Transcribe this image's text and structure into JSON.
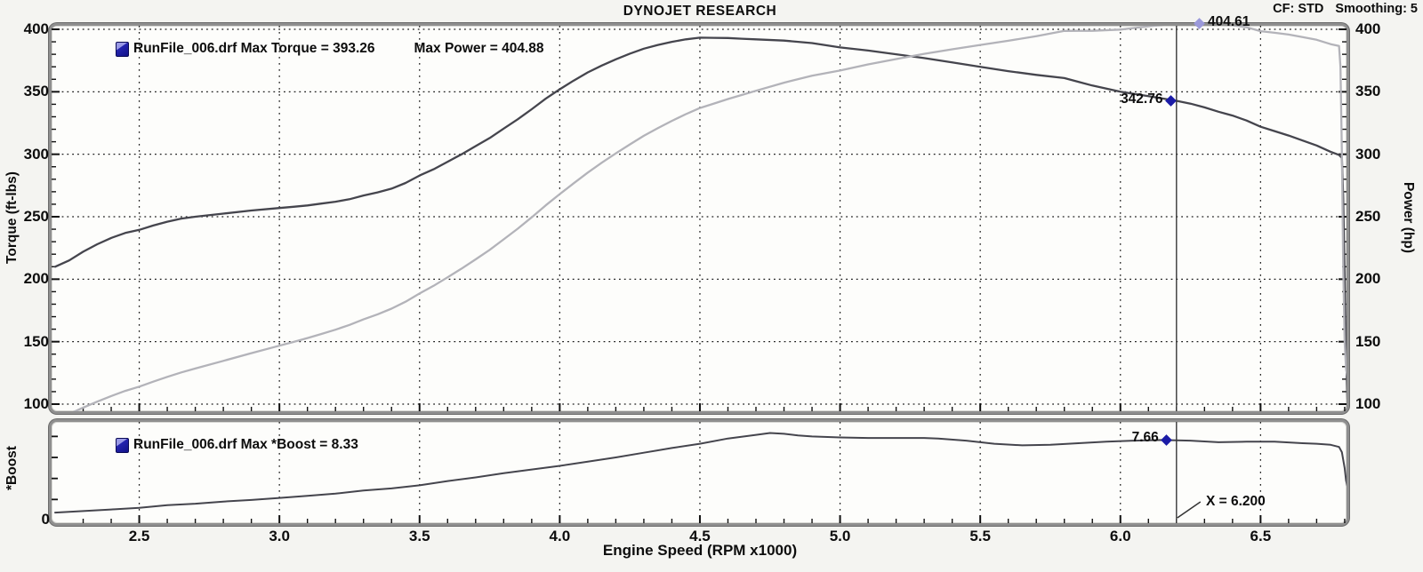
{
  "header": {
    "title": "DYNOJET RESEARCH",
    "cf": "CF: STD",
    "smoothing": "Smoothing: 5"
  },
  "chart_data": [
    {
      "type": "line",
      "title": "DYNOJET RESEARCH",
      "xlabel": "Engine Speed (RPM x1000)",
      "ylabel_left": "Torque (ft-lbs)",
      "ylabel_right": "Power (hp)",
      "x_range": [
        2.2,
        6.83
      ],
      "y_range": [
        94,
        408
      ],
      "x_minor_step": 0.1,
      "y_minor_step": 10,
      "grid": true,
      "x_ticks": [
        {
          "v": 2.5,
          "label": "2.5"
        },
        {
          "v": 3.0,
          "label": "3.0"
        },
        {
          "v": 3.5,
          "label": "3.5"
        },
        {
          "v": 4.0,
          "label": "4.0"
        },
        {
          "v": 4.5,
          "label": "4.5"
        },
        {
          "v": 5.0,
          "label": "5.0"
        },
        {
          "v": 5.5,
          "label": "5.5"
        },
        {
          "v": 6.0,
          "label": "6.0"
        },
        {
          "v": 6.5,
          "label": "6.5"
        }
      ],
      "y_ticks": [
        {
          "v": 400,
          "label": "400"
        },
        {
          "v": 350,
          "label": "350"
        },
        {
          "v": 300,
          "label": "300"
        },
        {
          "v": 250,
          "label": "250"
        },
        {
          "v": 200,
          "label": "200"
        },
        {
          "v": 150,
          "label": "150"
        },
        {
          "v": 100,
          "label": "100"
        }
      ],
      "legend": {
        "icon_color": "#2525b0",
        "text_torque": "RunFile_006.drf Max Torque = 393.26",
        "text_power": "Max Power = 404.88",
        "max_torque": 393.26,
        "max_power": 404.88,
        "runfile": "RunFile_006.drf"
      },
      "cursor": {
        "x": 6.2,
        "label": "X = 6.200"
      },
      "markers": [
        {
          "name": "torque",
          "label": "342.76",
          "rpm": 6.18,
          "value": 342.76,
          "color": "#1b1ba6",
          "label_side": "left"
        },
        {
          "name": "power",
          "label": "404.61",
          "rpm": 6.28,
          "value": 404.61,
          "color": "#9b99da",
          "label_side": "right"
        }
      ],
      "series": [
        {
          "name": "Torque (ft-lbs)",
          "color": "#45454d",
          "width": 2.3,
          "points": [
            [
              2.2,
              210
            ],
            [
              2.25,
              215
            ],
            [
              2.3,
              222
            ],
            [
              2.35,
              228
            ],
            [
              2.4,
              233
            ],
            [
              2.45,
              237
            ],
            [
              2.5,
              239.5
            ],
            [
              2.55,
              243
            ],
            [
              2.6,
              246
            ],
            [
              2.65,
              248.5
            ],
            [
              2.7,
              250
            ],
            [
              2.8,
              252.5
            ],
            [
              2.9,
              255
            ],
            [
              3.0,
              257
            ],
            [
              3.05,
              258
            ],
            [
              3.1,
              259
            ],
            [
              3.15,
              260.5
            ],
            [
              3.2,
              262
            ],
            [
              3.25,
              264
            ],
            [
              3.3,
              267
            ],
            [
              3.35,
              269.5
            ],
            [
              3.4,
              272.5
            ],
            [
              3.45,
              277
            ],
            [
              3.5,
              283
            ],
            [
              3.55,
              288
            ],
            [
              3.6,
              294
            ],
            [
              3.65,
              300
            ],
            [
              3.7,
              306.5
            ],
            [
              3.75,
              313
            ],
            [
              3.8,
              320.5
            ],
            [
              3.85,
              328
            ],
            [
              3.9,
              336
            ],
            [
              3.95,
              344.5
            ],
            [
              4.0,
              352
            ],
            [
              4.05,
              359
            ],
            [
              4.1,
              365.5
            ],
            [
              4.15,
              371
            ],
            [
              4.2,
              376
            ],
            [
              4.25,
              380.5
            ],
            [
              4.3,
              384.5
            ],
            [
              4.35,
              387.5
            ],
            [
              4.4,
              390
            ],
            [
              4.45,
              392
            ],
            [
              4.5,
              393.3
            ],
            [
              4.55,
              393.2
            ],
            [
              4.6,
              393
            ],
            [
              4.65,
              392.5
            ],
            [
              4.7,
              392
            ],
            [
              4.8,
              391
            ],
            [
              4.9,
              389
            ],
            [
              5.0,
              385.5
            ],
            [
              5.1,
              383
            ],
            [
              5.2,
              380
            ],
            [
              5.3,
              377
            ],
            [
              5.4,
              373.5
            ],
            [
              5.5,
              370
            ],
            [
              5.6,
              366.5
            ],
            [
              5.7,
              363.5
            ],
            [
              5.8,
              361
            ],
            [
              5.85,
              358
            ],
            [
              5.9,
              355
            ],
            [
              6.0,
              350
            ],
            [
              6.1,
              346.5
            ],
            [
              6.2,
              342.8
            ],
            [
              6.25,
              340.5
            ],
            [
              6.3,
              337.5
            ],
            [
              6.35,
              334
            ],
            [
              6.4,
              331
            ],
            [
              6.45,
              327
            ],
            [
              6.5,
              322
            ],
            [
              6.55,
              318.5
            ],
            [
              6.6,
              315
            ],
            [
              6.65,
              311
            ],
            [
              6.7,
              307
            ],
            [
              6.75,
              302
            ],
            [
              6.78,
              299.5
            ],
            [
              6.79,
              297
            ],
            [
              6.795,
              265
            ],
            [
              6.8,
              200
            ],
            [
              6.805,
              140
            ],
            [
              6.81,
              104
            ]
          ]
        },
        {
          "name": "Power (hp)",
          "color": "#b3b3b9",
          "width": 2.3,
          "points": [
            [
              2.2,
              88
            ],
            [
              2.25,
              92.1
            ],
            [
              2.3,
              97.2
            ],
            [
              2.35,
              102
            ],
            [
              2.4,
              106.5
            ],
            [
              2.45,
              110.6
            ],
            [
              2.5,
              114
            ],
            [
              2.55,
              118
            ],
            [
              2.6,
              121.8
            ],
            [
              2.65,
              125.4
            ],
            [
              2.7,
              128.5
            ],
            [
              2.8,
              134.6
            ],
            [
              2.9,
              140.8
            ],
            [
              3.0,
              146.8
            ],
            [
              3.05,
              149.8
            ],
            [
              3.1,
              152.9
            ],
            [
              3.15,
              156.2
            ],
            [
              3.2,
              159.6
            ],
            [
              3.25,
              163.4
            ],
            [
              3.3,
              167.8
            ],
            [
              3.35,
              171.9
            ],
            [
              3.4,
              176.4
            ],
            [
              3.45,
              182
            ],
            [
              3.5,
              188.6
            ],
            [
              3.55,
              194.7
            ],
            [
              3.6,
              201.5
            ],
            [
              3.65,
              208.5
            ],
            [
              3.7,
              215.9
            ],
            [
              3.75,
              223.5
            ],
            [
              3.8,
              231.9
            ],
            [
              3.85,
              240.4
            ],
            [
              3.9,
              249.5
            ],
            [
              3.95,
              259.1
            ],
            [
              4.0,
              268.1
            ],
            [
              4.05,
              276.8
            ],
            [
              4.1,
              285.3
            ],
            [
              4.15,
              293.2
            ],
            [
              4.2,
              300.7
            ],
            [
              4.25,
              307.9
            ],
            [
              4.3,
              314.8
            ],
            [
              4.35,
              320.9
            ],
            [
              4.4,
              326.7
            ],
            [
              4.45,
              332.1
            ],
            [
              4.5,
              337
            ],
            [
              4.55,
              340.6
            ],
            [
              4.6,
              344.2
            ],
            [
              4.65,
              347.5
            ],
            [
              4.7,
              350.8
            ],
            [
              4.8,
              357.3
            ],
            [
              4.9,
              362.9
            ],
            [
              5.0,
              367
            ],
            [
              5.1,
              371.9
            ],
            [
              5.2,
              376.2
            ],
            [
              5.3,
              380.4
            ],
            [
              5.4,
              384
            ],
            [
              5.5,
              387.5
            ],
            [
              5.6,
              390.8
            ],
            [
              5.7,
              394.5
            ],
            [
              5.8,
              398.7
            ],
            [
              5.85,
              398.8
            ],
            [
              5.9,
              398.8
            ],
            [
              6.0,
              399.8
            ],
            [
              6.1,
              402.4
            ],
            [
              6.2,
              404.6
            ],
            [
              6.25,
              404.9
            ],
            [
              6.3,
              404.8
            ],
            [
              6.35,
              403.8
            ],
            [
              6.4,
              403.3
            ],
            [
              6.45,
              401.6
            ],
            [
              6.5,
              398.5
            ],
            [
              6.55,
              397.2
            ],
            [
              6.6,
              395.8
            ],
            [
              6.65,
              393.8
            ],
            [
              6.7,
              391.6
            ],
            [
              6.75,
              388.1
            ],
            [
              6.78,
              386.6
            ],
            [
              6.785,
              370
            ],
            [
              6.79,
              300
            ],
            [
              6.795,
              210
            ],
            [
              6.8,
              150
            ],
            [
              6.805,
              128
            ],
            [
              6.81,
              122
            ]
          ]
        }
      ]
    },
    {
      "type": "line",
      "ylabel": "*Boost",
      "y_origin_label": "0",
      "x_range": [
        2.2,
        6.83
      ],
      "y_range": [
        0,
        9.4
      ],
      "y_ticks_minor": [
        2,
        4,
        6,
        8
      ],
      "legend": {
        "icon_color": "#2525b0",
        "text": "RunFile_006.drf Max *Boost = 8.33",
        "max_boost": 8.33,
        "runfile": "RunFile_006.drf"
      },
      "markers": [
        {
          "name": "boost",
          "label": "7.66",
          "rpm": 6.165,
          "value": 7.66,
          "color": "#1b1ba6",
          "label_side": "left"
        }
      ],
      "series": [
        {
          "name": "*Boost",
          "color": "#45454d",
          "width": 2,
          "points": [
            [
              2.2,
              0.75
            ],
            [
              2.3,
              0.9
            ],
            [
              2.4,
              1.05
            ],
            [
              2.5,
              1.2
            ],
            [
              2.6,
              1.45
            ],
            [
              2.7,
              1.6
            ],
            [
              2.8,
              1.8
            ],
            [
              2.9,
              1.95
            ],
            [
              3.0,
              2.15
            ],
            [
              3.1,
              2.35
            ],
            [
              3.2,
              2.55
            ],
            [
              3.3,
              2.85
            ],
            [
              3.4,
              3.05
            ],
            [
              3.5,
              3.35
            ],
            [
              3.6,
              3.75
            ],
            [
              3.7,
              4.1
            ],
            [
              3.8,
              4.5
            ],
            [
              3.9,
              4.85
            ],
            [
              4.0,
              5.2
            ],
            [
              4.1,
              5.6
            ],
            [
              4.2,
              6.0
            ],
            [
              4.3,
              6.45
            ],
            [
              4.4,
              6.9
            ],
            [
              4.5,
              7.3
            ],
            [
              4.6,
              7.8
            ],
            [
              4.7,
              8.15
            ],
            [
              4.75,
              8.33
            ],
            [
              4.8,
              8.25
            ],
            [
              4.85,
              8.1
            ],
            [
              4.9,
              8.0
            ],
            [
              5.0,
              7.9
            ],
            [
              5.1,
              7.85
            ],
            [
              5.2,
              7.85
            ],
            [
              5.3,
              7.85
            ],
            [
              5.35,
              7.8
            ],
            [
              5.45,
              7.6
            ],
            [
              5.55,
              7.3
            ],
            [
              5.65,
              7.15
            ],
            [
              5.75,
              7.2
            ],
            [
              5.85,
              7.35
            ],
            [
              5.95,
              7.5
            ],
            [
              6.05,
              7.6
            ],
            [
              6.15,
              7.66
            ],
            [
              6.25,
              7.6
            ],
            [
              6.35,
              7.45
            ],
            [
              6.45,
              7.5
            ],
            [
              6.55,
              7.5
            ],
            [
              6.65,
              7.35
            ],
            [
              6.7,
              7.3
            ],
            [
              6.75,
              7.2
            ],
            [
              6.78,
              7.0
            ],
            [
              6.79,
              6.5
            ],
            [
              6.8,
              5.0
            ],
            [
              6.805,
              3.8
            ],
            [
              6.81,
              3.2
            ]
          ]
        }
      ]
    }
  ],
  "colors": {
    "grid": "#1b1b1b",
    "cursor": "#383838",
    "frame_border": "#8f8f8f",
    "torque_curve": "#45454d",
    "power_curve": "#b3b3b9",
    "marker_dark": "#1b1ba6",
    "marker_light": "#9b99da"
  }
}
